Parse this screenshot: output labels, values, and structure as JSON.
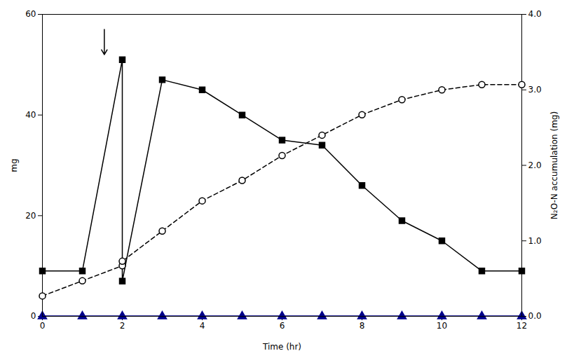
{
  "chart_data": {
    "type": "line",
    "xlabel": "Time (hr)",
    "ylabel": "mg",
    "y2label": "N₂O-N accumulation (mg)",
    "xlim": [
      0,
      12
    ],
    "xticks": [
      0,
      2,
      4,
      6,
      8,
      10,
      12
    ],
    "ylim": [
      0,
      60
    ],
    "yticks": [
      0,
      20,
      40,
      60
    ],
    "y2lim": [
      0,
      4
    ],
    "y2ticks": [
      0,
      1,
      2,
      3,
      4
    ],
    "grid": false,
    "series": [
      {
        "x": [
          0,
          1,
          2,
          2,
          3,
          4,
          5,
          6,
          7,
          8,
          9,
          10,
          11,
          12
        ],
        "values": [
          9,
          9,
          51,
          7,
          47,
          45,
          40,
          35,
          34,
          26,
          19,
          15,
          9,
          9
        ],
        "color": "black",
        "marker": "square",
        "line_style": "solid",
        "axis": "y"
      },
      {
        "x": [
          0,
          1,
          2,
          3,
          4,
          5,
          6,
          7,
          8,
          9,
          10,
          11,
          12
        ],
        "values": [
          0,
          0,
          0,
          0,
          0,
          0,
          0,
          0,
          0,
          0,
          0,
          0,
          0
        ],
        "color": "#00008B",
        "marker": "triangle",
        "line_style": "solid",
        "axis": "y"
      },
      {
        "x": [
          0,
          1,
          2,
          2,
          3,
          4,
          5,
          6,
          7,
          8,
          9,
          10,
          11,
          12
        ],
        "values": [
          0.27,
          0.47,
          0.67,
          0.73,
          1.13,
          1.53,
          1.8,
          2.13,
          2.4,
          2.67,
          2.87,
          3.0,
          3.07,
          3.07
        ],
        "color": "black",
        "marker": "circle",
        "line_style": "dashed",
        "axis": "y2"
      }
    ],
    "vline": {
      "x": 2.0,
      "y": [
        7,
        51
      ],
      "color": "gray"
    },
    "arrow": {
      "x": 1.55,
      "y_from": 57,
      "y_to": 52,
      "color": "black"
    }
  }
}
